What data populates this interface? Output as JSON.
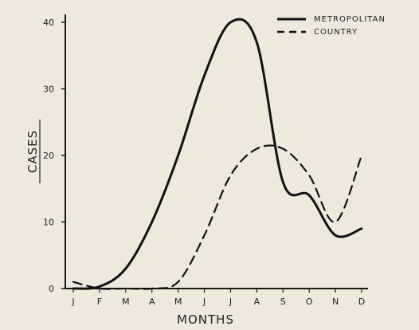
{
  "chart_data": {
    "type": "line",
    "xlabel": "MONTHS",
    "ylabel": "CASES",
    "categories": [
      "J",
      "F",
      "M",
      "A",
      "M",
      "J",
      "J",
      "A",
      "S",
      "O",
      "N",
      "D"
    ],
    "yticks": [
      "0",
      "10",
      "20",
      "30",
      "40"
    ],
    "ylim": [
      0,
      40
    ],
    "legend_position": "top-right",
    "series": [
      {
        "name": "METROPOLITAN",
        "style": "solid",
        "color": "#111111",
        "values": [
          0,
          0.3,
          3,
          10,
          20,
          32,
          40,
          37,
          16,
          14,
          8,
          9
        ]
      },
      {
        "name": "COUNTRY",
        "style": "dashed",
        "color": "#111111",
        "values": [
          1,
          0,
          0,
          0,
          1,
          8,
          17,
          21,
          21,
          17,
          10,
          20
        ]
      }
    ]
  }
}
